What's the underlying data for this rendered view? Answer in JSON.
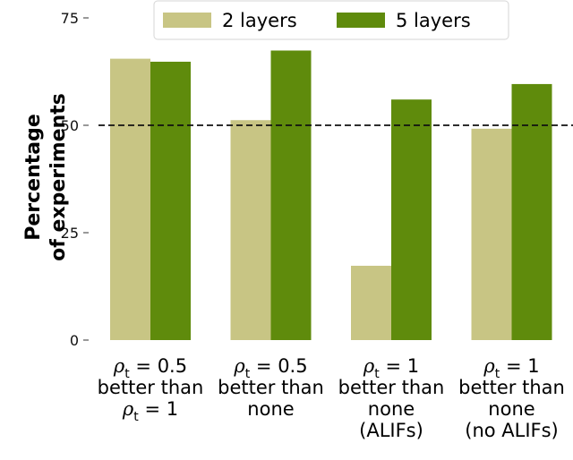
{
  "chart_data": {
    "type": "bar",
    "ylabel_lines": [
      "Percentage",
      "of experiments"
    ],
    "ylim": [
      0,
      75
    ],
    "yticks": [
      0,
      25,
      50,
      75
    ],
    "reference_line": {
      "y": 50,
      "style": "dashed"
    },
    "grid": false,
    "legend_position": "top-center",
    "categories": [
      {
        "lines": [
          {
            "rho": "0.5"
          },
          {
            "text": "better than"
          },
          {
            "rho": "1"
          }
        ]
      },
      {
        "lines": [
          {
            "rho": "0.5"
          },
          {
            "text": "better than"
          },
          {
            "text": "none"
          }
        ]
      },
      {
        "lines": [
          {
            "rho": "1"
          },
          {
            "text": "better than"
          },
          {
            "text": "none"
          },
          {
            "text": "(ALIFs)"
          }
        ]
      },
      {
        "lines": [
          {
            "rho": "1"
          },
          {
            "text": "better than"
          },
          {
            "text": "none"
          },
          {
            "text": "(no ALIFs)"
          }
        ]
      }
    ],
    "series": [
      {
        "name": "2 layers",
        "color": "#c8c584",
        "values": [
          65.5,
          51.2,
          17.3,
          49.2
        ]
      },
      {
        "name": "5 layers",
        "color": "#5f8b0c",
        "values": [
          64.8,
          67.4,
          56.0,
          59.6
        ]
      }
    ]
  }
}
